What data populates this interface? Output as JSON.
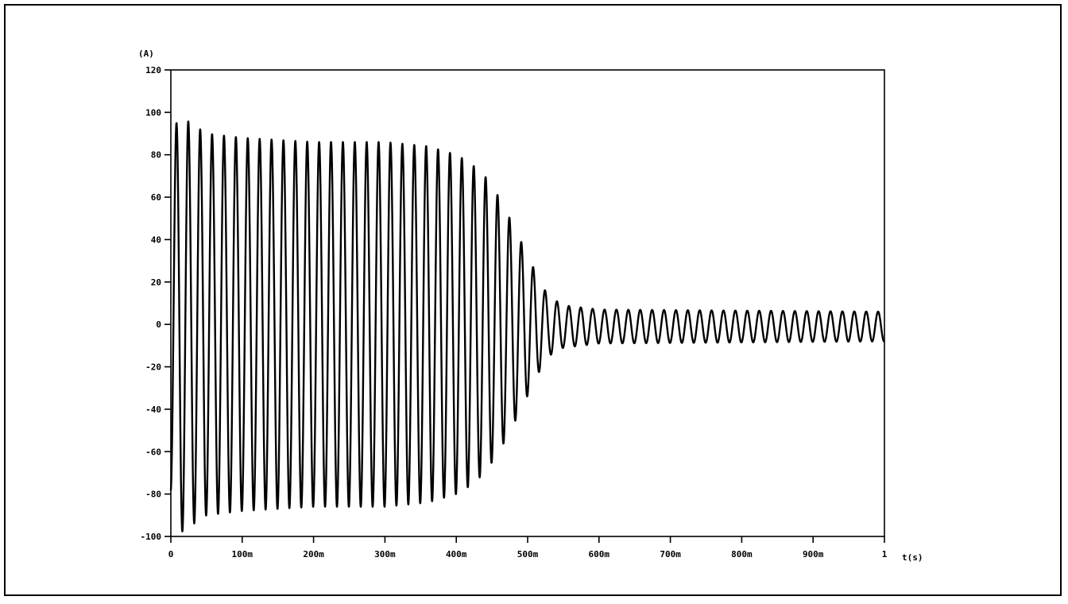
{
  "chart_data": {
    "type": "line",
    "title": "",
    "ylabel": "(A)",
    "xlabel": "t(s)",
    "xlim": [
      0,
      1
    ],
    "ylim": [
      -100,
      120
    ],
    "grid": false,
    "yticks": [
      {
        "value": 120,
        "label": "120"
      },
      {
        "value": 100,
        "label": "100"
      },
      {
        "value": 80,
        "label": "80"
      },
      {
        "value": 60,
        "label": "60"
      },
      {
        "value": 40,
        "label": "40"
      },
      {
        "value": 20,
        "label": "20"
      },
      {
        "value": 0,
        "label": "0"
      },
      {
        "value": -20,
        "label": "-20"
      },
      {
        "value": -40,
        "label": "-40"
      },
      {
        "value": -60,
        "label": "-60"
      },
      {
        "value": -80,
        "label": "-80"
      },
      {
        "value": -100,
        "label": "-100"
      }
    ],
    "xticks": [
      {
        "value": 0,
        "label": "0"
      },
      {
        "value": 0.1,
        "label": "100m"
      },
      {
        "value": 0.2,
        "label": "200m"
      },
      {
        "value": 0.3,
        "label": "300m"
      },
      {
        "value": 0.4,
        "label": "400m"
      },
      {
        "value": 0.5,
        "label": "500m"
      },
      {
        "value": 0.6,
        "label": "600m"
      },
      {
        "value": 0.7,
        "label": "700m"
      },
      {
        "value": 0.8,
        "label": "800m"
      },
      {
        "value": 0.9,
        "label": "900m"
      },
      {
        "value": 1.0,
        "label": "1"
      }
    ],
    "series": [
      {
        "frequency_hz": 60,
        "envelope": {
          "t": [
            0,
            0.01,
            0.05,
            0.1,
            0.2,
            0.3,
            0.36,
            0.4,
            0.42,
            0.44,
            0.46,
            0.48,
            0.5,
            0.51,
            0.52,
            0.53,
            0.55,
            0.6,
            1.0
          ],
          "amplitude": [
            80,
            99,
            90,
            88,
            86,
            86,
            84,
            80,
            76,
            70,
            60,
            47,
            33,
            26,
            19,
            14,
            10,
            8,
            7
          ]
        },
        "offset_after_transient": -1
      }
    ]
  }
}
